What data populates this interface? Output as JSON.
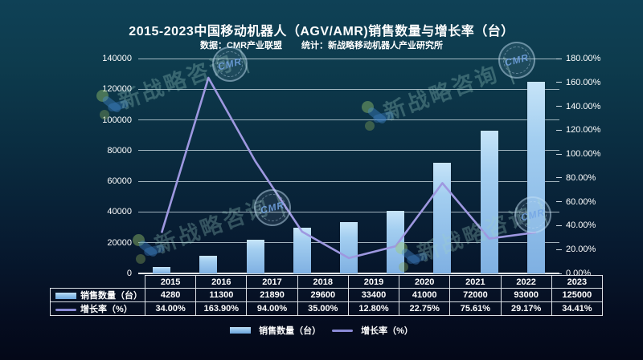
{
  "title": "2015-2023中国移动机器人（AGV/AMR)销售数量与增长率（台）",
  "subtitle": {
    "data_source": "数据：CMR产业联盟",
    "statistics": "统计：新战略移动机器人产业研究所"
  },
  "chart_data": {
    "type": "bar+line combo",
    "categories": [
      "2015",
      "2016",
      "2017",
      "2018",
      "2019",
      "2020",
      "2021",
      "2022",
      "2023"
    ],
    "series": [
      {
        "name": "销售数量（台）",
        "type": "bar",
        "axis": "left",
        "values": [
          4280,
          11300,
          21890,
          29600,
          33400,
          41000,
          72000,
          93000,
          125000
        ],
        "labels": [
          "4280",
          "11300",
          "21890",
          "29600",
          "33400",
          "41000",
          "72000",
          "93000",
          "125000"
        ]
      },
      {
        "name": "增长率（%）",
        "type": "line",
        "axis": "right",
        "values": [
          34.0,
          163.9,
          94.0,
          35.0,
          12.8,
          22.75,
          75.61,
          29.17,
          34.41
        ],
        "labels": [
          "34.00%",
          "163.90%",
          "94.00%",
          "35.00%",
          "12.80%",
          "22.75%",
          "75.61%",
          "29.17%",
          "34.41%"
        ]
      }
    ],
    "left_axis": {
      "min": 0,
      "max": 140000,
      "step": 20000,
      "tick_labels": [
        "0",
        "20000",
        "40000",
        "60000",
        "80000",
        "100000",
        "120000",
        "140000"
      ]
    },
    "right_axis": {
      "min": 0,
      "max": 180,
      "step": 20,
      "tick_labels": [
        "0.00%",
        "20.00%",
        "40.00%",
        "60.00%",
        "80.00%",
        "100.00%",
        "120.00%",
        "140.00%",
        "160.00%",
        "180.00%"
      ]
    },
    "grid": "horizontal gridlines on",
    "legend_position": "bottom",
    "data_table_shown": true
  },
  "watermark": {
    "text": "新战略咨询",
    "divider": "|",
    "stamp": "CMR"
  },
  "colors": {
    "background_top": "#0f4156",
    "background_bottom": "#040818",
    "bar_top": "#c6e4f8",
    "bar_bottom": "#7fb0e2",
    "line": "#9e98e0",
    "grid": "#d6e4eb",
    "text": "#ffffff",
    "table_border": "#ecf1f6",
    "watermark_text": "#9ed0c6"
  }
}
